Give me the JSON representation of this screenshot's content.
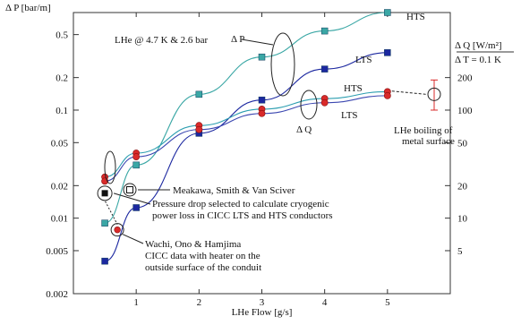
{
  "chart_data": {
    "type": "line",
    "title": "",
    "condition": "LHe @ 4.7 K & 2.6 bar",
    "xlabel": "LHe Flow [g/s]",
    "ylabel_left": "Δ P [bar/m]",
    "ylabel_right_top": "Δ Q [W/m²]",
    "ylabel_right_bottom": "Δ T = 0.1 K",
    "x_ticks": [
      "1",
      "2",
      "3",
      "4",
      "5"
    ],
    "left_y_scale": "log",
    "left_ylim": [
      0.002,
      0.8
    ],
    "left_y_ticks": [
      "0.002",
      "0.005",
      "0.01",
      "0.02",
      "0.05",
      "0.1",
      "0.2",
      "0.5"
    ],
    "right_y_scale": "log",
    "right_ylim": [
      2,
      800
    ],
    "right_y_ticks": [
      "5",
      "10",
      "20",
      "50",
      "100",
      "200"
    ],
    "series": [
      {
        "name": "HTS",
        "group": "Δ P",
        "axis": "left",
        "color": "#3aa7a5",
        "marker": "square",
        "x": [
          0.5,
          1,
          2,
          3,
          4,
          5
        ],
        "y": [
          0.009,
          0.031,
          0.14,
          0.31,
          0.54,
          0.8
        ]
      },
      {
        "name": "LTS",
        "group": "Δ P",
        "axis": "left",
        "color": "#1c28a0",
        "marker": "square",
        "x": [
          0.5,
          1,
          2,
          3,
          4,
          5
        ],
        "y": [
          0.004,
          0.0125,
          0.061,
          0.124,
          0.24,
          0.34
        ]
      },
      {
        "name": "HTS",
        "group": "Δ Q",
        "axis": "right",
        "color": "#2c9eb0",
        "marker": "circle",
        "x": [
          0.5,
          1,
          2,
          3,
          4,
          5
        ],
        "y": [
          24,
          40,
          72,
          102,
          128,
          148
        ]
      },
      {
        "name": "LTS",
        "group": "Δ Q",
        "axis": "right",
        "color": "#3a46b0",
        "marker": "circle",
        "x": [
          0.5,
          1,
          2,
          3,
          4,
          5
        ],
        "y": [
          22,
          37,
          66,
          93,
          117,
          136
        ]
      }
    ],
    "reference_points": [
      {
        "name": "Meakawa, Smith & Van Sciver",
        "x": 0.5,
        "y": 0.017,
        "marker": "filled-square-circled"
      },
      {
        "name": "Wachi, Ono & Hamjima",
        "x": 0.7,
        "y": 0.0078,
        "marker": "filled-circle-circled"
      }
    ],
    "boiling": {
      "label_line1": "LHe boiling of",
      "label_line2": "metal surface",
      "value": 140,
      "error_range": [
        100,
        190
      ]
    },
    "annotations": {
      "dp_label": "Δ P",
      "dq_label": "Δ Q",
      "hts_top": "HTS",
      "lts_top": "LTS",
      "hts_mid": "HTS",
      "lts_mid": "LTS",
      "meakawa": "Meakawa, Smith & Van Sciver",
      "selected_line1": "Pressure drop selected to calculate cryogenic",
      "selected_line2": "power loss in CICC LTS and HTS conductors",
      "wachi_line1": "Wachi, Ono & Hamjima",
      "wachi_line2": "CICC data with heater on the",
      "wachi_line3": "outside surface of the conduit"
    }
  }
}
